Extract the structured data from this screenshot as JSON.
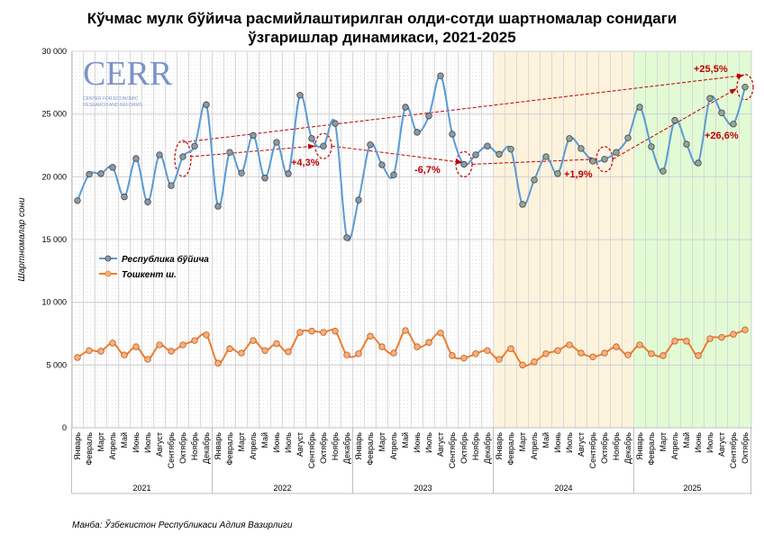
{
  "title_line1": "Кўчмас мулк бўйича расмийлаштирилган олди-сотди шартномалар сонидаги",
  "title_line2": "ўзгаришлар динамикаси, 2021-2025",
  "source": "Манба: Ўзбекистон Республикаси Адлия Вазирлиги",
  "logo": {
    "text": "CERR",
    "subtitle": "CENTER FOR ECONOMIC RESEARCH AND REFORMS"
  },
  "colors": {
    "republic": "#5b9bd5",
    "tashkent": "#ed7d31",
    "band2024": "#fdf3dc",
    "band2025": "#e2fbd4",
    "annotation": "#c00000"
  },
  "chart_data": {
    "type": "line",
    "title": "Кўчмас мулк бўйича расмийлаштирилган олди-сотди шартномалар сонидаги ўзгаришлар динамикаси, 2021-2025",
    "ylabel": "Шартномалар сони",
    "xlabel": "",
    "ylim": [
      0,
      30000
    ],
    "yticks": [
      "0",
      "5 000",
      "10 000",
      "15 000",
      "20 000",
      "25 000",
      "30 000"
    ],
    "ytick_values": [
      0,
      5000,
      10000,
      15000,
      20000,
      25000,
      30000
    ],
    "months": [
      "Январь",
      "Февраль",
      "Март",
      "Апрель",
      "Май",
      "Июнь",
      "Июль",
      "Август",
      "Сентябрь",
      "Октябрь",
      "Ноябрь",
      "Декабрь"
    ],
    "years": [
      "2021",
      "2022",
      "2023",
      "2024",
      "2025"
    ],
    "months_in_last_year": 10,
    "legend_position": "left-middle",
    "grid": true,
    "series": [
      {
        "name": "Республика бўйича",
        "values": [
          18100,
          20200,
          20250,
          20750,
          18400,
          21450,
          18000,
          21750,
          19300,
          21600,
          22450,
          25750,
          17650,
          21950,
          20300,
          23300,
          19900,
          22750,
          20250,
          26500,
          23050,
          22450,
          24250,
          15150,
          18150,
          22550,
          20950,
          20150,
          25550,
          23550,
          24850,
          28050,
          23400,
          21000,
          21750,
          22450,
          21800,
          22200,
          17800,
          19750,
          21600,
          20250,
          23050,
          22250,
          21250,
          21400,
          21950,
          23100,
          25550,
          22400,
          20450,
          24500,
          22600,
          21100,
          26250,
          25100,
          24200,
          27150
        ]
      },
      {
        "name": "Тошкент ш.",
        "values": [
          5600,
          6150,
          6100,
          6750,
          5800,
          6450,
          5450,
          6600,
          6100,
          6600,
          6950,
          7400,
          5150,
          6300,
          5950,
          6950,
          6150,
          6700,
          6050,
          7600,
          7700,
          7600,
          7700,
          5800,
          5900,
          7300,
          6450,
          5950,
          7750,
          6450,
          6800,
          7550,
          5750,
          5550,
          5900,
          6150,
          5450,
          6300,
          5000,
          5250,
          5900,
          6150,
          6600,
          5950,
          5650,
          5950,
          6450,
          5800,
          6600,
          5900,
          5750,
          6900,
          6900,
          5750,
          7100,
          7200,
          7450,
          7800
        ]
      }
    ],
    "annotations": [
      {
        "text": "+25,5%",
        "from": "Октябрь 2021",
        "to": "Октябрь 2025"
      },
      {
        "text": "+4,3%",
        "from": "Октябрь 2021",
        "to": "Октябрь 2022"
      },
      {
        "text": "-6,7%",
        "from": "Октябрь 2022",
        "to": "Октябрь 2023"
      },
      {
        "text": "+1,9%",
        "from": "Октябрь 2023",
        "to": "Октябрь 2024"
      },
      {
        "text": "+26,6%",
        "from": "Октябрь 2024",
        "to": "Октябрь 2025"
      }
    ]
  }
}
